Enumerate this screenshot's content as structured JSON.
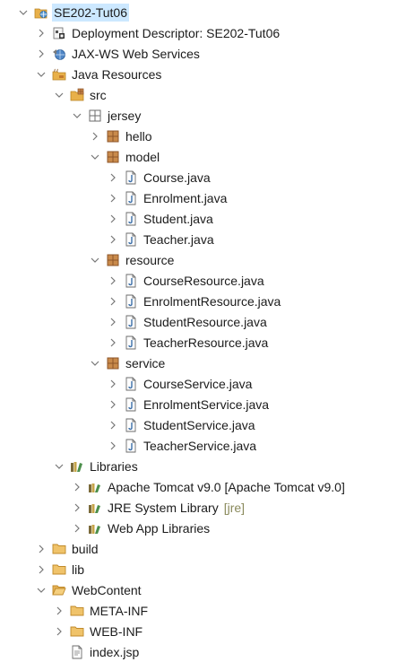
{
  "tree": {
    "rows": [
      {
        "depth": 0,
        "twisty": "collapse",
        "icon": "web-project-icon",
        "label": "SE202-Tut06",
        "selected": true
      },
      {
        "depth": 1,
        "twisty": "expand",
        "icon": "deployment-descriptor-icon",
        "label": "Deployment Descriptor: SE202-Tut06"
      },
      {
        "depth": 1,
        "twisty": "expand",
        "icon": "web-services-icon",
        "label": "JAX-WS Web Services"
      },
      {
        "depth": 1,
        "twisty": "collapse",
        "icon": "java-resources-icon",
        "label": "Java Resources"
      },
      {
        "depth": 2,
        "twisty": "collapse",
        "icon": "source-folder-icon",
        "label": "src"
      },
      {
        "depth": 3,
        "twisty": "collapse",
        "icon": "package-icon",
        "label": "jersey"
      },
      {
        "depth": 4,
        "twisty": "expand",
        "icon": "package-filled-icon",
        "label": "hello"
      },
      {
        "depth": 4,
        "twisty": "collapse",
        "icon": "package-filled-icon",
        "label": "model"
      },
      {
        "depth": 5,
        "twisty": "expand",
        "icon": "java-file-icon",
        "label": "Course.java"
      },
      {
        "depth": 5,
        "twisty": "expand",
        "icon": "java-file-icon",
        "label": "Enrolment.java"
      },
      {
        "depth": 5,
        "twisty": "expand",
        "icon": "java-file-icon",
        "label": "Student.java"
      },
      {
        "depth": 5,
        "twisty": "expand",
        "icon": "java-file-icon",
        "label": "Teacher.java"
      },
      {
        "depth": 4,
        "twisty": "collapse",
        "icon": "package-filled-icon",
        "label": "resource"
      },
      {
        "depth": 5,
        "twisty": "expand",
        "icon": "java-file-icon",
        "label": "CourseResource.java"
      },
      {
        "depth": 5,
        "twisty": "expand",
        "icon": "java-file-icon",
        "label": "EnrolmentResource.java"
      },
      {
        "depth": 5,
        "twisty": "expand",
        "icon": "java-file-icon",
        "label": "StudentResource.java"
      },
      {
        "depth": 5,
        "twisty": "expand",
        "icon": "java-file-icon",
        "label": "TeacherResource.java"
      },
      {
        "depth": 4,
        "twisty": "collapse",
        "icon": "package-filled-icon",
        "label": "service"
      },
      {
        "depth": 5,
        "twisty": "expand",
        "icon": "java-file-icon",
        "label": "CourseService.java"
      },
      {
        "depth": 5,
        "twisty": "expand",
        "icon": "java-file-icon",
        "label": "EnrolmentService.java"
      },
      {
        "depth": 5,
        "twisty": "expand",
        "icon": "java-file-icon",
        "label": "StudentService.java"
      },
      {
        "depth": 5,
        "twisty": "expand",
        "icon": "java-file-icon",
        "label": "TeacherService.java"
      },
      {
        "depth": 2,
        "twisty": "collapse",
        "icon": "libraries-icon",
        "label": "Libraries"
      },
      {
        "depth": 3,
        "twisty": "expand",
        "icon": "library-icon",
        "label": "Apache Tomcat v9.0 [Apache Tomcat v9.0]"
      },
      {
        "depth": 3,
        "twisty": "expand",
        "icon": "library-icon",
        "label": "JRE System Library",
        "decoration": "[jre]"
      },
      {
        "depth": 3,
        "twisty": "expand",
        "icon": "library-icon",
        "label": "Web App Libraries"
      },
      {
        "depth": 1,
        "twisty": "expand",
        "icon": "folder-icon",
        "label": "build"
      },
      {
        "depth": 1,
        "twisty": "expand",
        "icon": "folder-icon",
        "label": "lib"
      },
      {
        "depth": 1,
        "twisty": "collapse",
        "icon": "folder-open-icon",
        "label": "WebContent"
      },
      {
        "depth": 2,
        "twisty": "expand",
        "icon": "folder-icon",
        "label": "META-INF"
      },
      {
        "depth": 2,
        "twisty": "expand",
        "icon": "folder-icon",
        "label": "WEB-INF"
      },
      {
        "depth": 2,
        "twisty": "none",
        "icon": "jsp-file-icon",
        "label": "index.jsp"
      }
    ]
  },
  "colors": {
    "selection": "#cce8ff",
    "twisty": "#777777",
    "folder": "#e8b04a",
    "package": "#b07a3a",
    "java": "#3b6ea8",
    "decoration": "#8a8a5c"
  }
}
